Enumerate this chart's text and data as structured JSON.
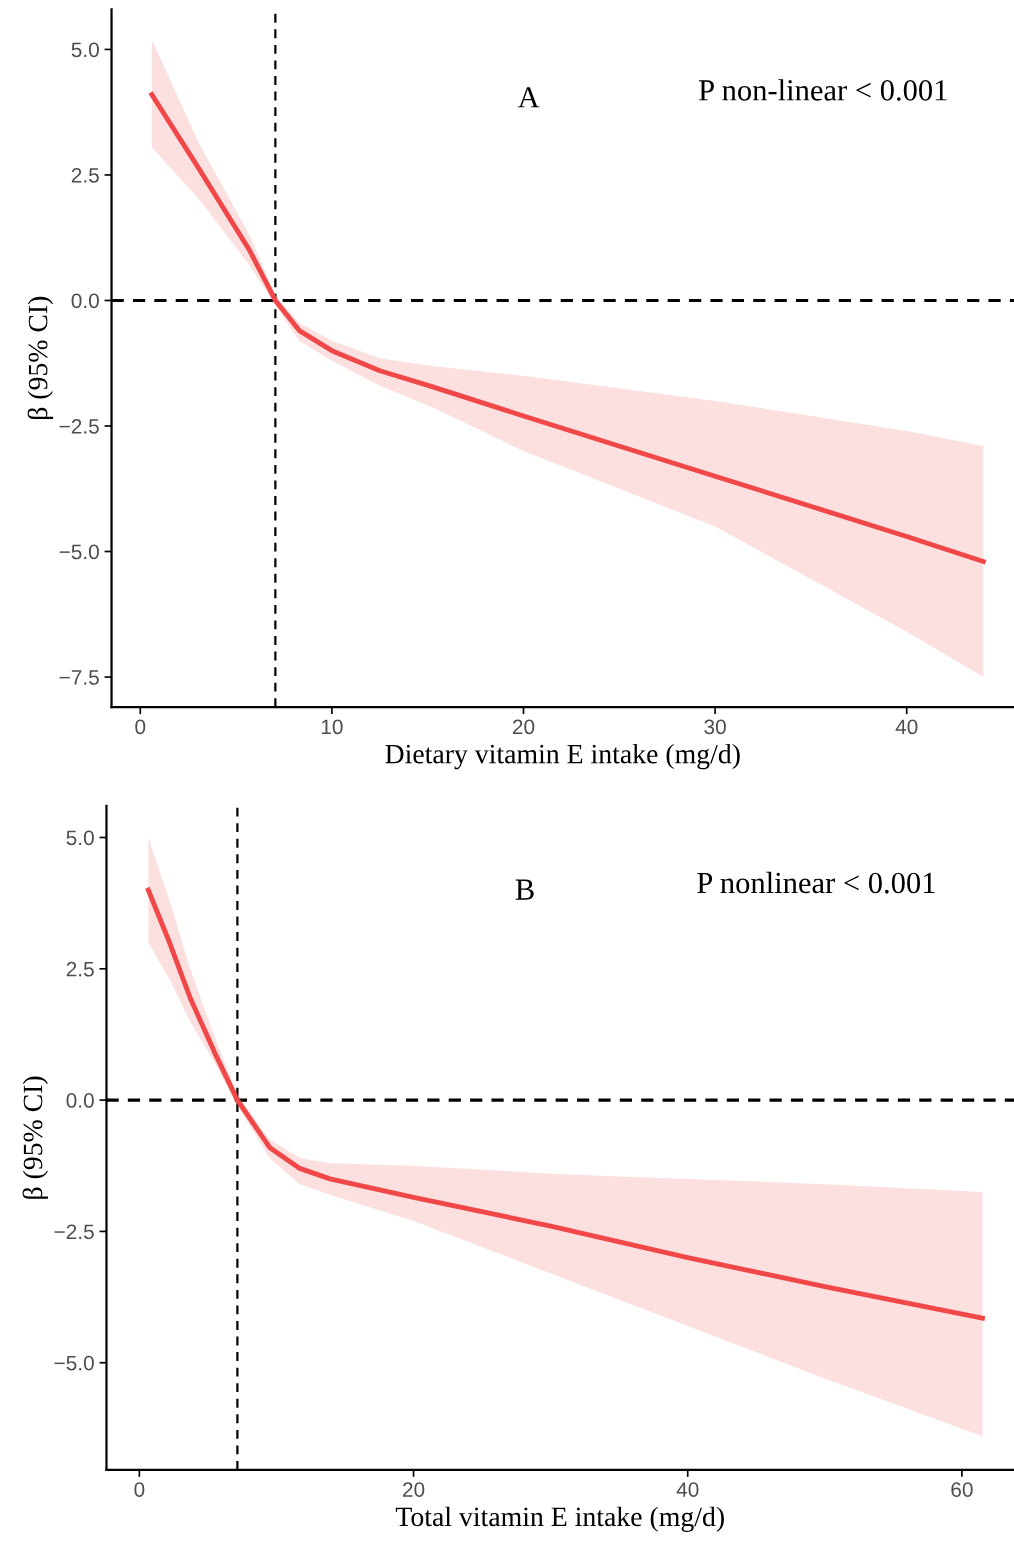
{
  "chart_data": [
    {
      "type": "line",
      "xlabel": "Dietary vitamin E intake (mg/d)",
      "ylabel": "β (95% CI)",
      "annotations": [
        "A",
        "P non-linear < 0.001"
      ],
      "xlim": [
        -1.5,
        45.6
      ],
      "ylim": [
        -8.1,
        5.8
      ],
      "xticks": [
        0,
        10,
        20,
        30,
        40
      ],
      "yticks": [
        {
          "value": 5,
          "label": "5.0"
        },
        {
          "value": 2.5,
          "label": "2.5"
        },
        {
          "value": 0,
          "label": "0.0"
        },
        {
          "value": -2.5,
          "label": "−2.5"
        },
        {
          "value": -5,
          "label": "−5.0"
        },
        {
          "value": -7.5,
          "label": "−7.5"
        }
      ],
      "grid": false,
      "legend": false,
      "marker": "none",
      "line_style": "solid",
      "ref_lines": [
        {
          "axis": "x",
          "value": 7.05,
          "color": "#000000",
          "line_style": "dashed"
        },
        {
          "axis": "y",
          "value": 0,
          "color": "#000000",
          "line_style": "dashed"
        }
      ],
      "series": [
        {
          "color": "#f04848",
          "x": [
            0.6,
            3.1,
            5.7,
            7.05,
            8.3,
            10,
            12.5,
            15.1,
            20,
            30,
            40,
            44
          ],
          "values": [
            4.1,
            2.6,
            1.0,
            0,
            -0.6,
            -1.0,
            -1.4,
            -1.7,
            -2.3,
            -3.5,
            -4.7,
            -5.2
          ],
          "lower": [
            3.05,
            2.0,
            0.7,
            -0.1,
            -0.8,
            -1.2,
            -1.7,
            -2.1,
            -3.0,
            -4.5,
            -6.6,
            -7.5
          ],
          "upper": [
            5.2,
            3.1,
            1.3,
            0.1,
            -0.45,
            -0.8,
            -1.15,
            -1.3,
            -1.5,
            -2.0,
            -2.6,
            -2.9
          ]
        }
      ]
    },
    {
      "type": "line",
      "xlabel": "Total vitamin E intake (mg/d)",
      "ylabel": "β (95% CI)",
      "annotations": [
        "B",
        "P nonlinear < 0.001"
      ],
      "xlim": [
        -2.4,
        63.8
      ],
      "ylim": [
        -7.04,
        5.6
      ],
      "xticks": [
        0,
        20,
        40,
        60
      ],
      "yticks": [
        {
          "value": 5,
          "label": "5.0"
        },
        {
          "value": 2.5,
          "label": "2.5"
        },
        {
          "value": 0,
          "label": "0.0"
        },
        {
          "value": -2.5,
          "label": "−2.5"
        },
        {
          "value": -5,
          "label": "−5.0"
        }
      ],
      "grid": false,
      "legend": false,
      "marker": "none",
      "line_style": "solid",
      "ref_lines": [
        {
          "axis": "x",
          "value": 7.15,
          "color": "#000000",
          "line_style": "dashed"
        },
        {
          "axis": "y",
          "value": 0,
          "color": "#000000",
          "line_style": "dashed"
        }
      ],
      "series": [
        {
          "color": "#f04848",
          "x": [
            0.65,
            2.2,
            3.7,
            5.5,
            7.15,
            9.5,
            11.7,
            13.9,
            20,
            30,
            40,
            50,
            61.5
          ],
          "values": [
            4.0,
            3.0,
            1.95,
            0.9,
            0,
            -0.9,
            -1.3,
            -1.5,
            -1.85,
            -2.4,
            -3.0,
            -3.55,
            -4.15
          ],
          "lower": [
            3.0,
            2.3,
            1.5,
            0.7,
            -0.1,
            -1.1,
            -1.6,
            -1.8,
            -2.3,
            -3.3,
            -4.3,
            -5.3,
            -6.4
          ],
          "upper": [
            5.0,
            3.8,
            2.5,
            1.2,
            0.1,
            -0.75,
            -1.1,
            -1.2,
            -1.25,
            -1.4,
            -1.5,
            -1.6,
            -1.75
          ]
        }
      ]
    }
  ]
}
